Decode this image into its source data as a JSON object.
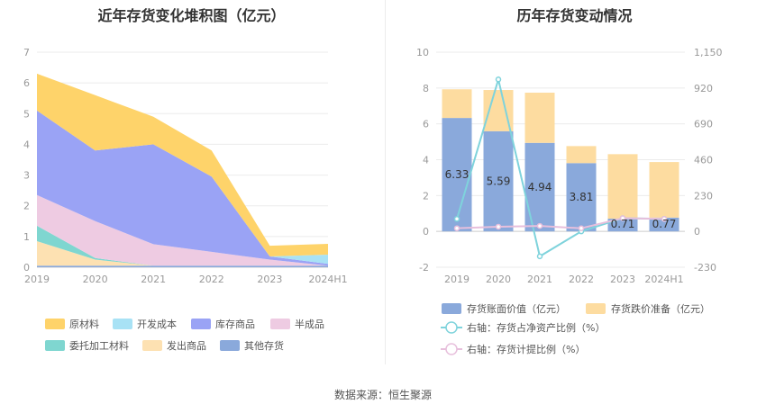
{
  "source": "数据来源：恒生聚源",
  "chart_data": [
    {
      "type": "area",
      "title": "近年存货变化堆积图（亿元）",
      "categories": [
        "2019",
        "2020",
        "2021",
        "2022",
        "2023",
        "2024H1"
      ],
      "ylim": [
        0,
        7
      ],
      "yticks": [
        "0",
        "1",
        "2",
        "3",
        "4",
        "5",
        "6",
        "7"
      ],
      "grid": true,
      "legend_position": "bottom",
      "series": [
        {
          "name": "其他存货",
          "color": "#8aa9db",
          "values": [
            0.05,
            0.05,
            0.05,
            0.05,
            0.05,
            0.05
          ]
        },
        {
          "name": "发出商品",
          "color": "#fde1b2",
          "values": [
            0.8,
            0.2,
            0.0,
            0.0,
            0.0,
            0.0
          ]
        },
        {
          "name": "委托加工材料",
          "color": "#7fd6d0",
          "values": [
            0.5,
            0.05,
            0.0,
            0.0,
            0.0,
            0.0
          ]
        },
        {
          "name": "半成品",
          "color": "#eecbe2",
          "values": [
            1.0,
            1.2,
            0.7,
            0.45,
            0.2,
            0.0
          ]
        },
        {
          "name": "库存商品",
          "color": "#9aa3f5",
          "values": [
            2.75,
            2.3,
            3.25,
            2.45,
            0.1,
            0.06
          ]
        },
        {
          "name": "开发成本",
          "color": "#a8e2f5",
          "values": [
            0.0,
            0.0,
            0.0,
            0.0,
            0.0,
            0.3
          ]
        },
        {
          "name": "原材料",
          "color": "#fed36a",
          "values": [
            1.2,
            1.8,
            0.9,
            0.85,
            0.35,
            0.35
          ]
        }
      ],
      "legend_order": [
        "原材料",
        "开发成本",
        "库存商品",
        "半成品",
        "委托加工材料",
        "发出商品",
        "其他存货"
      ]
    },
    {
      "type": "bar",
      "title": "历年存货变动情况",
      "categories": [
        "2019",
        "2020",
        "2021",
        "2022",
        "2023",
        "2024H1"
      ],
      "ylim": [
        -2,
        10
      ],
      "yticks": [
        "-2",
        "0",
        "2",
        "4",
        "6",
        "8",
        "10"
      ],
      "y2lim": [
        -230,
        1150
      ],
      "y2ticks": [
        "-230",
        "0",
        "230",
        "460",
        "690",
        "920",
        "1,150"
      ],
      "grid": true,
      "legend_position": "bottom",
      "series": [
        {
          "name": "存货账面价值（亿元）",
          "color": "#8aa9db",
          "kind": "bar",
          "values": [
            6.33,
            5.59,
            4.94,
            3.81,
            0.71,
            0.77
          ],
          "labels": [
            "6.33",
            "5.59",
            "4.94",
            "3.81",
            "0.71",
            "0.77"
          ]
        },
        {
          "name": "存货跌价准备（亿元）",
          "color": "#fddca0",
          "kind": "bar",
          "values": [
            1.6,
            2.3,
            2.8,
            0.95,
            3.6,
            3.1
          ]
        },
        {
          "name": "右轴：存货占净资产比例（%）",
          "color": "#7fd3dc",
          "kind": "line",
          "axis": "right",
          "values": [
            80,
            975,
            -160,
            0,
            85,
            80
          ]
        },
        {
          "name": "右轴：存货计提比例（%）",
          "color": "#e7bfdc",
          "kind": "line",
          "axis": "right",
          "values": [
            20,
            30,
            35,
            20,
            85,
            80
          ]
        }
      ]
    }
  ]
}
